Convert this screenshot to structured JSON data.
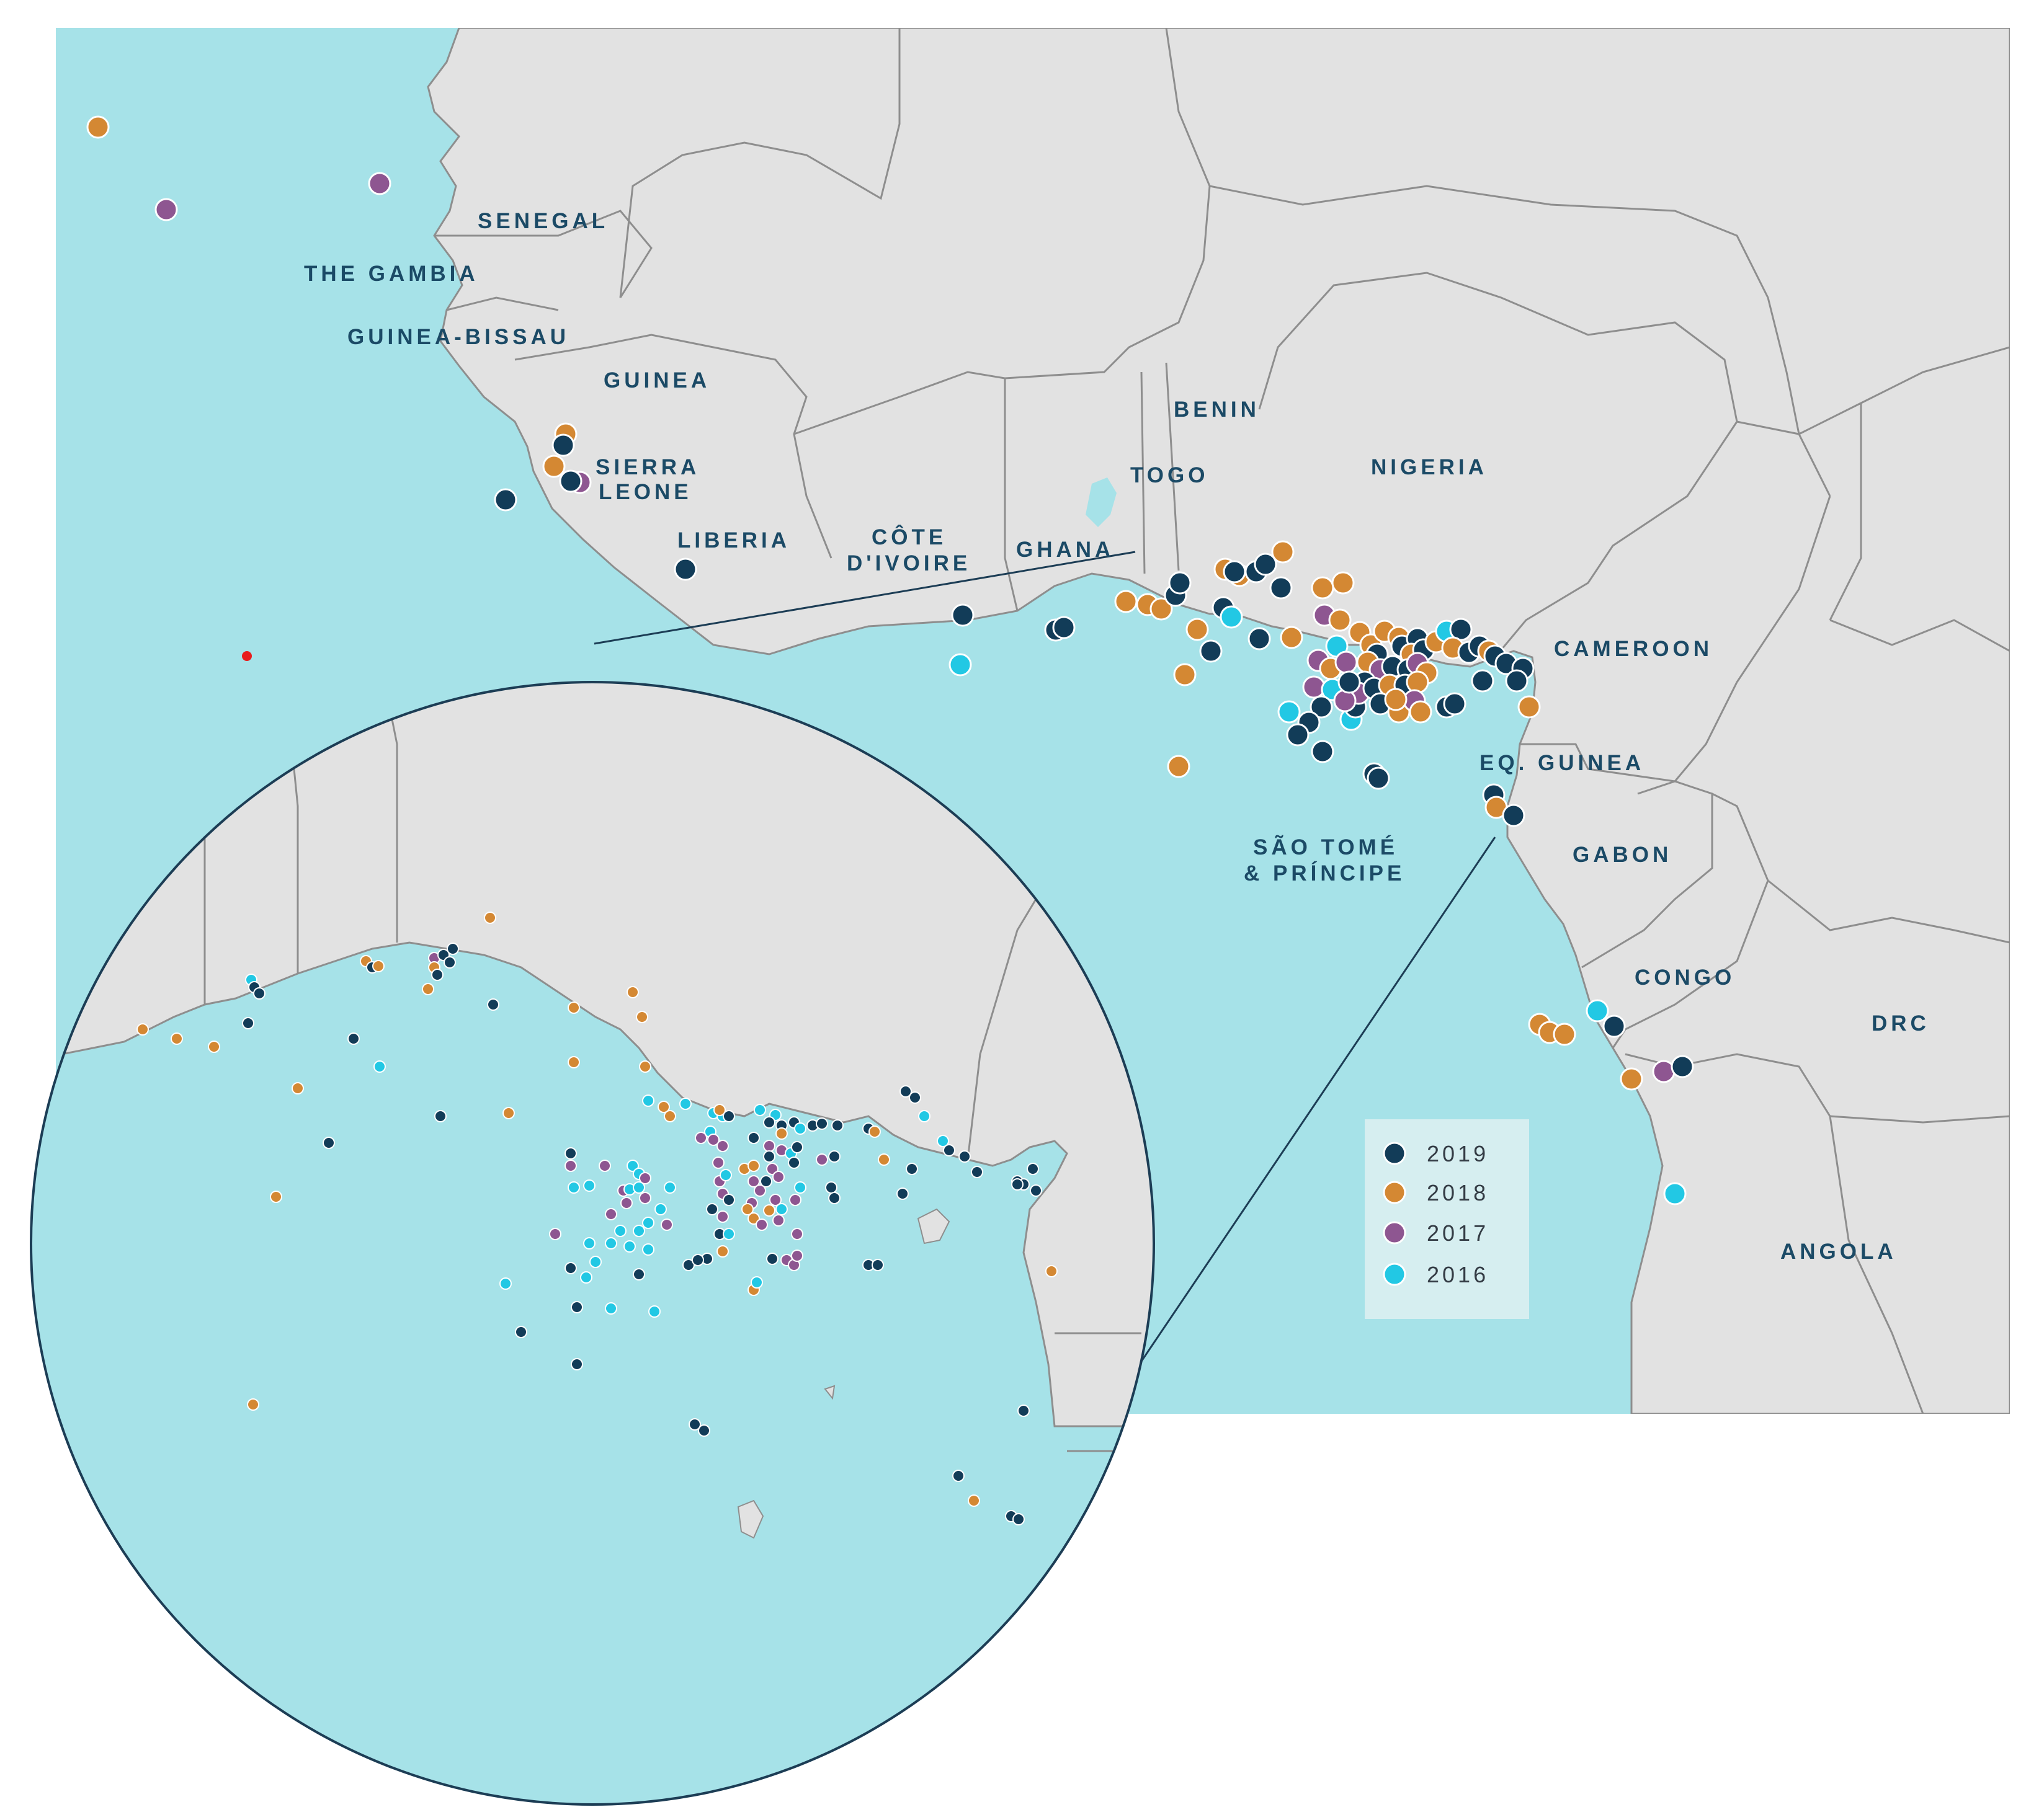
{
  "colors": {
    "sea": "#a6e2e8",
    "land": "#e2e2e2",
    "border": "#8e8e8e",
    "y2019": "#123c58",
    "y2018": "#d48833",
    "y2017": "#8e5691",
    "y2016": "#22c8e4",
    "callout": "#1c3d55",
    "marker_red": "#e81d1d"
  },
  "countries": [
    "SENEGAL",
    "THE GAMBIA",
    "GUINEA-BISSAU",
    "GUINEA",
    "SIERRA",
    "LEONE",
    "LIBERIA",
    "CÔTE",
    "D'IVOIRE",
    "GHANA",
    "TOGO",
    "BENIN",
    "NIGERIA",
    "CAMEROON",
    "EQ. GUINEA",
    "SÃO TOMÉ",
    "& PRÍNCIPE",
    "GABON",
    "CONGO",
    "DRC",
    "ANGOLA"
  ],
  "legend": [
    {
      "year": "2019",
      "color": "#123c58"
    },
    {
      "year": "2018",
      "color": "#d48833"
    },
    {
      "year": "2017",
      "color": "#8e5691"
    },
    {
      "year": "2016",
      "color": "#22c8e4"
    }
  ]
}
